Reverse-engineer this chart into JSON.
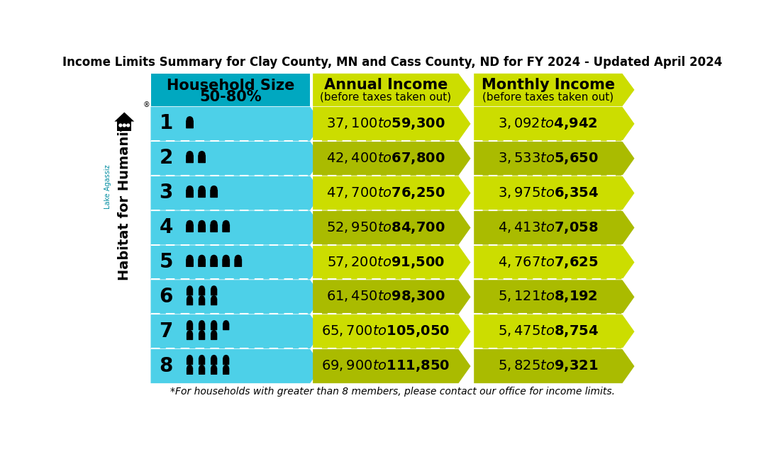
{
  "title": "Income Limits Summary for Clay County, MN and Cass County, ND for FY 2024 - Updated April 2024",
  "col1_header_line1": "Household Size",
  "col1_header_line2": "50-80%",
  "col2_header_line1": "Annual Income",
  "col2_header_line2": "(before taxes taken out)",
  "col3_header_line1": "Monthly Income",
  "col3_header_line2": "(before taxes taken out)",
  "footer": "*For households with greater than 8 members, please contact our office for income limits.",
  "rows": [
    {
      "size": 1,
      "annual": "$37,100 to $59,300",
      "monthly": "$3,092 to $4,942"
    },
    {
      "size": 2,
      "annual": "$42,400 to $67,800",
      "monthly": "$3,533 to $5,650"
    },
    {
      "size": 3,
      "annual": "$47,700 to $76,250",
      "monthly": "$3,975 to $6,354"
    },
    {
      "size": 4,
      "annual": "$52,950 to $84,700",
      "monthly": "$4,413 to $7,058"
    },
    {
      "size": 5,
      "annual": "$57,200 to $91,500",
      "monthly": "$4,767 to $7,625"
    },
    {
      "size": 6,
      "annual": "$61,450 to $98,300",
      "monthly": "$5,121 to $8,192"
    },
    {
      "size": 7,
      "annual": "$65,700 to $105,050",
      "monthly": "$5,475 to $8,754"
    },
    {
      "size": 8,
      "annual": "$69,900 to $111,850",
      "monthly": "$5,825 to $9,321"
    }
  ],
  "color_cyan_row": "#4DD0E8",
  "color_cyan_header": "#00A8C0",
  "color_yg_bright": "#CCDD00",
  "color_yg_dark": "#AABB00",
  "color_white": "#FFFFFF",
  "color_black": "#000000",
  "color_bg": "#FFFFFF",
  "logo_lake_agassiz": "Lake Agassiz",
  "logo_habitat": "Habitat for Humanity",
  "logo_cyan": "#008CA0"
}
